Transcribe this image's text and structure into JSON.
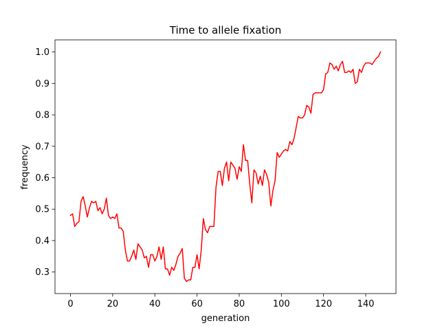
{
  "chart_data": {
    "type": "line",
    "title": "Time to allele fixation",
    "xlabel": "generation",
    "ylabel": "frequency",
    "xlim": [
      -7.35,
      154.35
    ],
    "ylim": [
      0.2315,
      1.0385
    ],
    "xticks": [
      0,
      20,
      40,
      60,
      80,
      100,
      120,
      140
    ],
    "yticks": [
      0.3,
      0.4,
      0.5,
      0.6,
      0.7,
      0.8,
      0.9,
      1.0
    ],
    "ytick_labels": [
      "0.3",
      "0.4",
      "0.5",
      "0.6",
      "0.7",
      "0.8",
      "0.9",
      "1.0"
    ],
    "grid": false,
    "legend": "none",
    "series": [
      {
        "color": "#ff0000",
        "x": [
          0,
          1,
          2,
          3,
          4,
          5,
          6,
          7,
          8,
          9,
          10,
          11,
          12,
          13,
          14,
          15,
          16,
          17,
          18,
          19,
          20,
          21,
          22,
          23,
          24,
          25,
          26,
          27,
          28,
          29,
          30,
          31,
          32,
          33,
          34,
          35,
          36,
          37,
          38,
          39,
          40,
          41,
          42,
          43,
          44,
          45,
          46,
          47,
          48,
          49,
          50,
          51,
          52,
          53,
          54,
          55,
          56,
          57,
          58,
          59,
          60,
          61,
          62,
          63,
          64,
          65,
          66,
          67,
          68,
          69,
          70,
          71,
          72,
          73,
          74,
          75,
          76,
          77,
          78,
          79,
          80,
          81,
          82,
          83,
          84,
          85,
          86,
          87,
          88,
          89,
          90,
          91,
          92,
          93,
          94,
          95,
          96,
          97,
          98,
          99,
          100,
          101,
          102,
          103,
          104,
          105,
          106,
          107,
          108,
          109,
          110,
          111,
          112,
          113,
          114,
          115,
          116,
          117,
          118,
          119,
          120,
          121,
          122,
          123,
          124,
          125,
          126,
          127,
          128,
          129,
          130,
          131,
          132,
          133,
          134,
          135,
          136,
          137,
          138,
          139,
          140,
          141,
          142,
          143,
          144,
          145,
          146,
          147
        ],
        "y": [
          0.48,
          0.485,
          0.445,
          0.455,
          0.46,
          0.525,
          0.54,
          0.51,
          0.475,
          0.505,
          0.525,
          0.52,
          0.525,
          0.495,
          0.505,
          0.485,
          0.5,
          0.535,
          0.48,
          0.47,
          0.475,
          0.47,
          0.485,
          0.44,
          0.44,
          0.43,
          0.37,
          0.335,
          0.335,
          0.35,
          0.37,
          0.34,
          0.39,
          0.38,
          0.37,
          0.345,
          0.35,
          0.315,
          0.355,
          0.355,
          0.335,
          0.35,
          0.38,
          0.34,
          0.38,
          0.31,
          0.31,
          0.29,
          0.315,
          0.305,
          0.325,
          0.35,
          0.36,
          0.375,
          0.28,
          0.27,
          0.275,
          0.275,
          0.315,
          0.315,
          0.355,
          0.31,
          0.37,
          0.47,
          0.435,
          0.425,
          0.445,
          0.445,
          0.445,
          0.57,
          0.62,
          0.62,
          0.575,
          0.63,
          0.65,
          0.59,
          0.65,
          0.64,
          0.63,
          0.595,
          0.635,
          0.62,
          0.705,
          0.655,
          0.655,
          0.58,
          0.52,
          0.625,
          0.615,
          0.58,
          0.605,
          0.575,
          0.625,
          0.61,
          0.585,
          0.51,
          0.56,
          0.59,
          0.68,
          0.665,
          0.675,
          0.685,
          0.69,
          0.685,
          0.715,
          0.705,
          0.725,
          0.76,
          0.795,
          0.79,
          0.79,
          0.8,
          0.83,
          0.825,
          0.805,
          0.865,
          0.87,
          0.87,
          0.87,
          0.87,
          0.88,
          0.93,
          0.935,
          0.965,
          0.96,
          0.945,
          0.955,
          0.94,
          0.96,
          0.97,
          0.935,
          0.935,
          0.94,
          0.935,
          0.945,
          0.9,
          0.905,
          0.945,
          0.935,
          0.955,
          0.965,
          0.965,
          0.965,
          0.96,
          0.97,
          0.98,
          0.985,
          1.0
        ]
      }
    ]
  }
}
